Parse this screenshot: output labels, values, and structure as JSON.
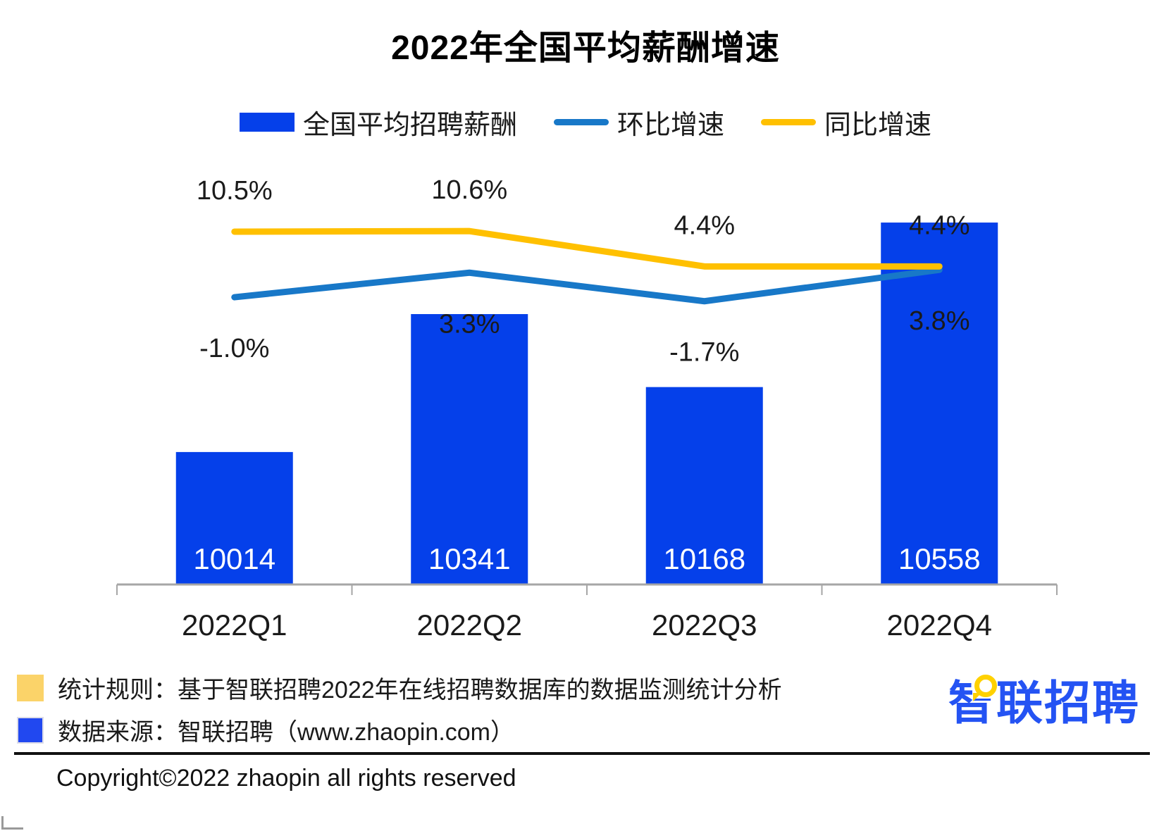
{
  "title": "2022年全国平均薪酬增速",
  "legend": [
    {
      "label": "全国平均招聘薪酬",
      "marker": "rect",
      "color": "#0540EA"
    },
    {
      "label": "环比增速",
      "marker": "line",
      "color": "#1878C8"
    },
    {
      "label": "同比增速",
      "marker": "line",
      "color": "#FFC000"
    }
  ],
  "chart_data": {
    "type": "bar",
    "title": "2022年全国平均薪酬增速",
    "categories": [
      "2022Q1",
      "2022Q2",
      "2022Q3",
      "2022Q4"
    ],
    "series": [
      {
        "name": "全国平均招聘薪酬",
        "type": "bar",
        "axis": "y1",
        "color": "#0540EA",
        "values": [
          10014,
          10341,
          10168,
          10558
        ],
        "labels": [
          "10014",
          "10341",
          "10168",
          "10558"
        ]
      },
      {
        "name": "环比增速",
        "type": "line",
        "axis": "y2",
        "color": "#1878C8",
        "values": [
          -1.0,
          3.3,
          -1.7,
          3.8
        ],
        "labels": [
          "-1.0%",
          "3.3%",
          "-1.7%",
          "3.8%"
        ],
        "label_dy": 85
      },
      {
        "name": "同比增速",
        "type": "line",
        "axis": "y2",
        "color": "#FFC000",
        "values": [
          10.5,
          10.6,
          4.4,
          4.4
        ],
        "labels": [
          "10.5%",
          "10.6%",
          "4.4%",
          "4.4%"
        ],
        "label_dy": -46
      }
    ],
    "y1_range": [
      9700,
      10735
    ],
    "y2_range": [
      -51.4,
      25.2
    ],
    "grid": false,
    "legend_position": "top",
    "axis_color": "#A6A6A6",
    "xlabel": "",
    "ylabel": ""
  },
  "footnotes": [
    {
      "color": "#FBD369",
      "text": "统计规则：基于智联招聘2022年在线招聘数据库的数据监测统计分析"
    },
    {
      "color": "#2148F0",
      "text": "数据来源：智联招聘（www.zhaopin.com）"
    }
  ],
  "logo": {
    "text": "智联招聘",
    "color": "#2453F3",
    "accent": "#FFD100"
  },
  "copyright": "Copyright©2022 zhaopin all rights reserved"
}
